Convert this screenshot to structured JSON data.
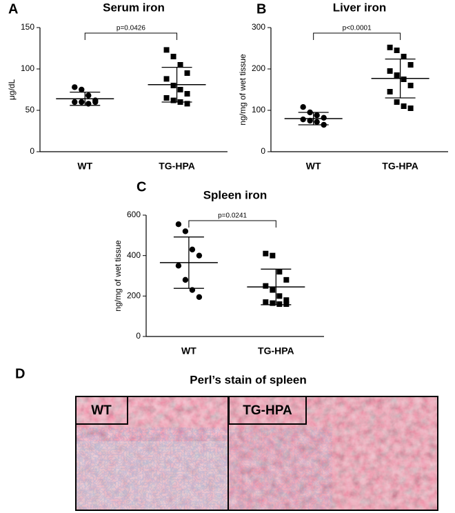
{
  "chart_data": [
    {
      "type": "dotplot",
      "panel_label": "A",
      "title": "Serum iron",
      "ylabel": "μg/dL",
      "categories": [
        "WT",
        "TG-HPA"
      ],
      "color": "#000000",
      "groups": [
        {
          "marker": "circle",
          "values": [
            78,
            75,
            68,
            62,
            60,
            60,
            58,
            60
          ],
          "mean": 64,
          "sd": 8
        },
        {
          "marker": "square",
          "values": [
            123,
            115,
            105,
            95,
            88,
            80,
            75,
            70,
            65,
            62,
            60,
            58
          ],
          "mean": 81,
          "sd": 21
        }
      ],
      "annotation": "p=0.0426",
      "ylim": [
        0,
        150
      ],
      "yticks": [
        0,
        50,
        100,
        150
      ]
    },
    {
      "type": "dotplot",
      "panel_label": "B",
      "title": "Liver iron",
      "ylabel": "ng/mg of wet tissue",
      "categories": [
        "WT",
        "TG-HPA"
      ],
      "color": "#000000",
      "groups": [
        {
          "marker": "circle",
          "values": [
            108,
            95,
            88,
            82,
            78,
            75,
            72,
            65
          ],
          "mean": 80,
          "sd": 15
        },
        {
          "marker": "square",
          "values": [
            252,
            245,
            230,
            210,
            195,
            185,
            175,
            160,
            145,
            120,
            110,
            105
          ],
          "mean": 177,
          "sd": 47
        }
      ],
      "annotation": "p<0.0001",
      "ylim": [
        0,
        300
      ],
      "yticks": [
        0,
        100,
        200,
        300
      ]
    },
    {
      "type": "dotplot",
      "panel_label": "C",
      "title": "Spleen iron",
      "ylabel": "ng/mg of wet tissue",
      "categories": [
        "WT",
        "TG-HPA"
      ],
      "color": "#000000",
      "groups": [
        {
          "marker": "circle",
          "values": [
            555,
            520,
            430,
            400,
            350,
            280,
            230,
            195
          ],
          "mean": 365,
          "sd": 127
        },
        {
          "marker": "square",
          "values": [
            410,
            400,
            320,
            280,
            250,
            230,
            200,
            180,
            170,
            165,
            160,
            160
          ],
          "mean": 245,
          "sd": 88
        }
      ],
      "annotation": "p=0.0241",
      "ylim": [
        0,
        600
      ],
      "yticks": [
        0,
        200,
        400,
        600
      ]
    }
  ],
  "figure_d": {
    "panel_label": "D",
    "title": "Perl’s stain of spleen",
    "images": [
      {
        "label": "WT"
      },
      {
        "label": "TG-HPA"
      }
    ]
  }
}
